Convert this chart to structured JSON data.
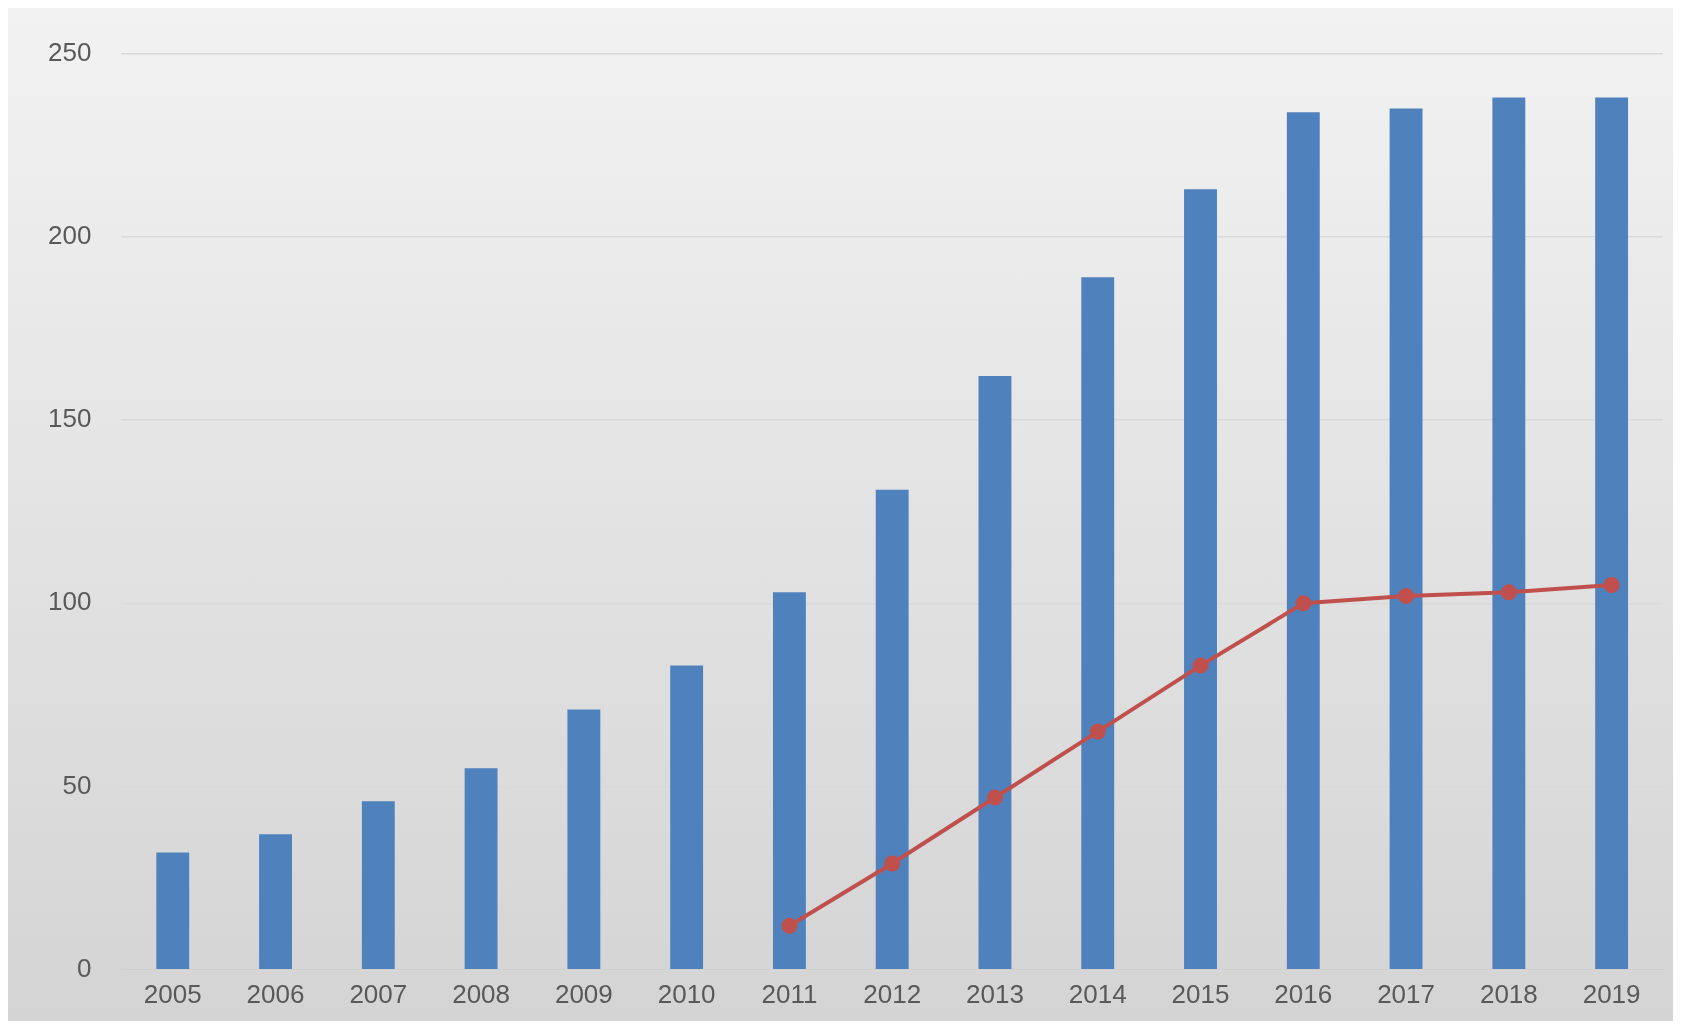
{
  "chart_data": {
    "type": "bar",
    "categories": [
      "2005",
      "2006",
      "2007",
      "2008",
      "2009",
      "2010",
      "2011",
      "2012",
      "2013",
      "2014",
      "2015",
      "2016",
      "2017",
      "2018",
      "2019"
    ],
    "series": [
      {
        "color": "#4f81bd",
        "values": [
          32,
          37,
          46,
          55,
          71,
          83,
          103,
          131,
          162,
          189,
          213,
          234,
          235,
          238,
          238
        ]
      },
      {
        "type": "line",
        "color": "#c0504d",
        "values": [
          null,
          null,
          null,
          null,
          null,
          null,
          12,
          29,
          47,
          65,
          83,
          100,
          102,
          103,
          105
        ]
      }
    ],
    "ylim": [
      0,
      250
    ],
    "yticks": [
      0,
      50,
      100,
      150,
      200,
      250
    ],
    "grid": "y",
    "legend": false,
    "marker": "circle",
    "line_style": "solid"
  }
}
